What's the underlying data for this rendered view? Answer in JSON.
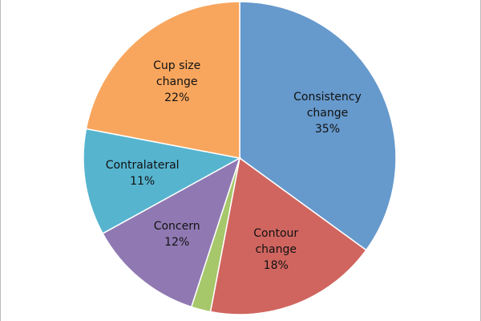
{
  "chart_data": {
    "type": "pie",
    "categories": [
      "Consistency change",
      "Contour change",
      null,
      "Concern",
      "Contralateral",
      "Cup size change"
    ],
    "values": [
      35,
      18,
      2,
      12,
      11,
      22
    ],
    "value_labels": [
      "35%",
      "18%",
      null,
      "12%",
      "11%",
      "22%"
    ],
    "colors": [
      "#6699cc",
      "#d0655f",
      "#a6c76a",
      "#9079b2",
      "#56b4cf",
      "#f8a65e"
    ]
  }
}
